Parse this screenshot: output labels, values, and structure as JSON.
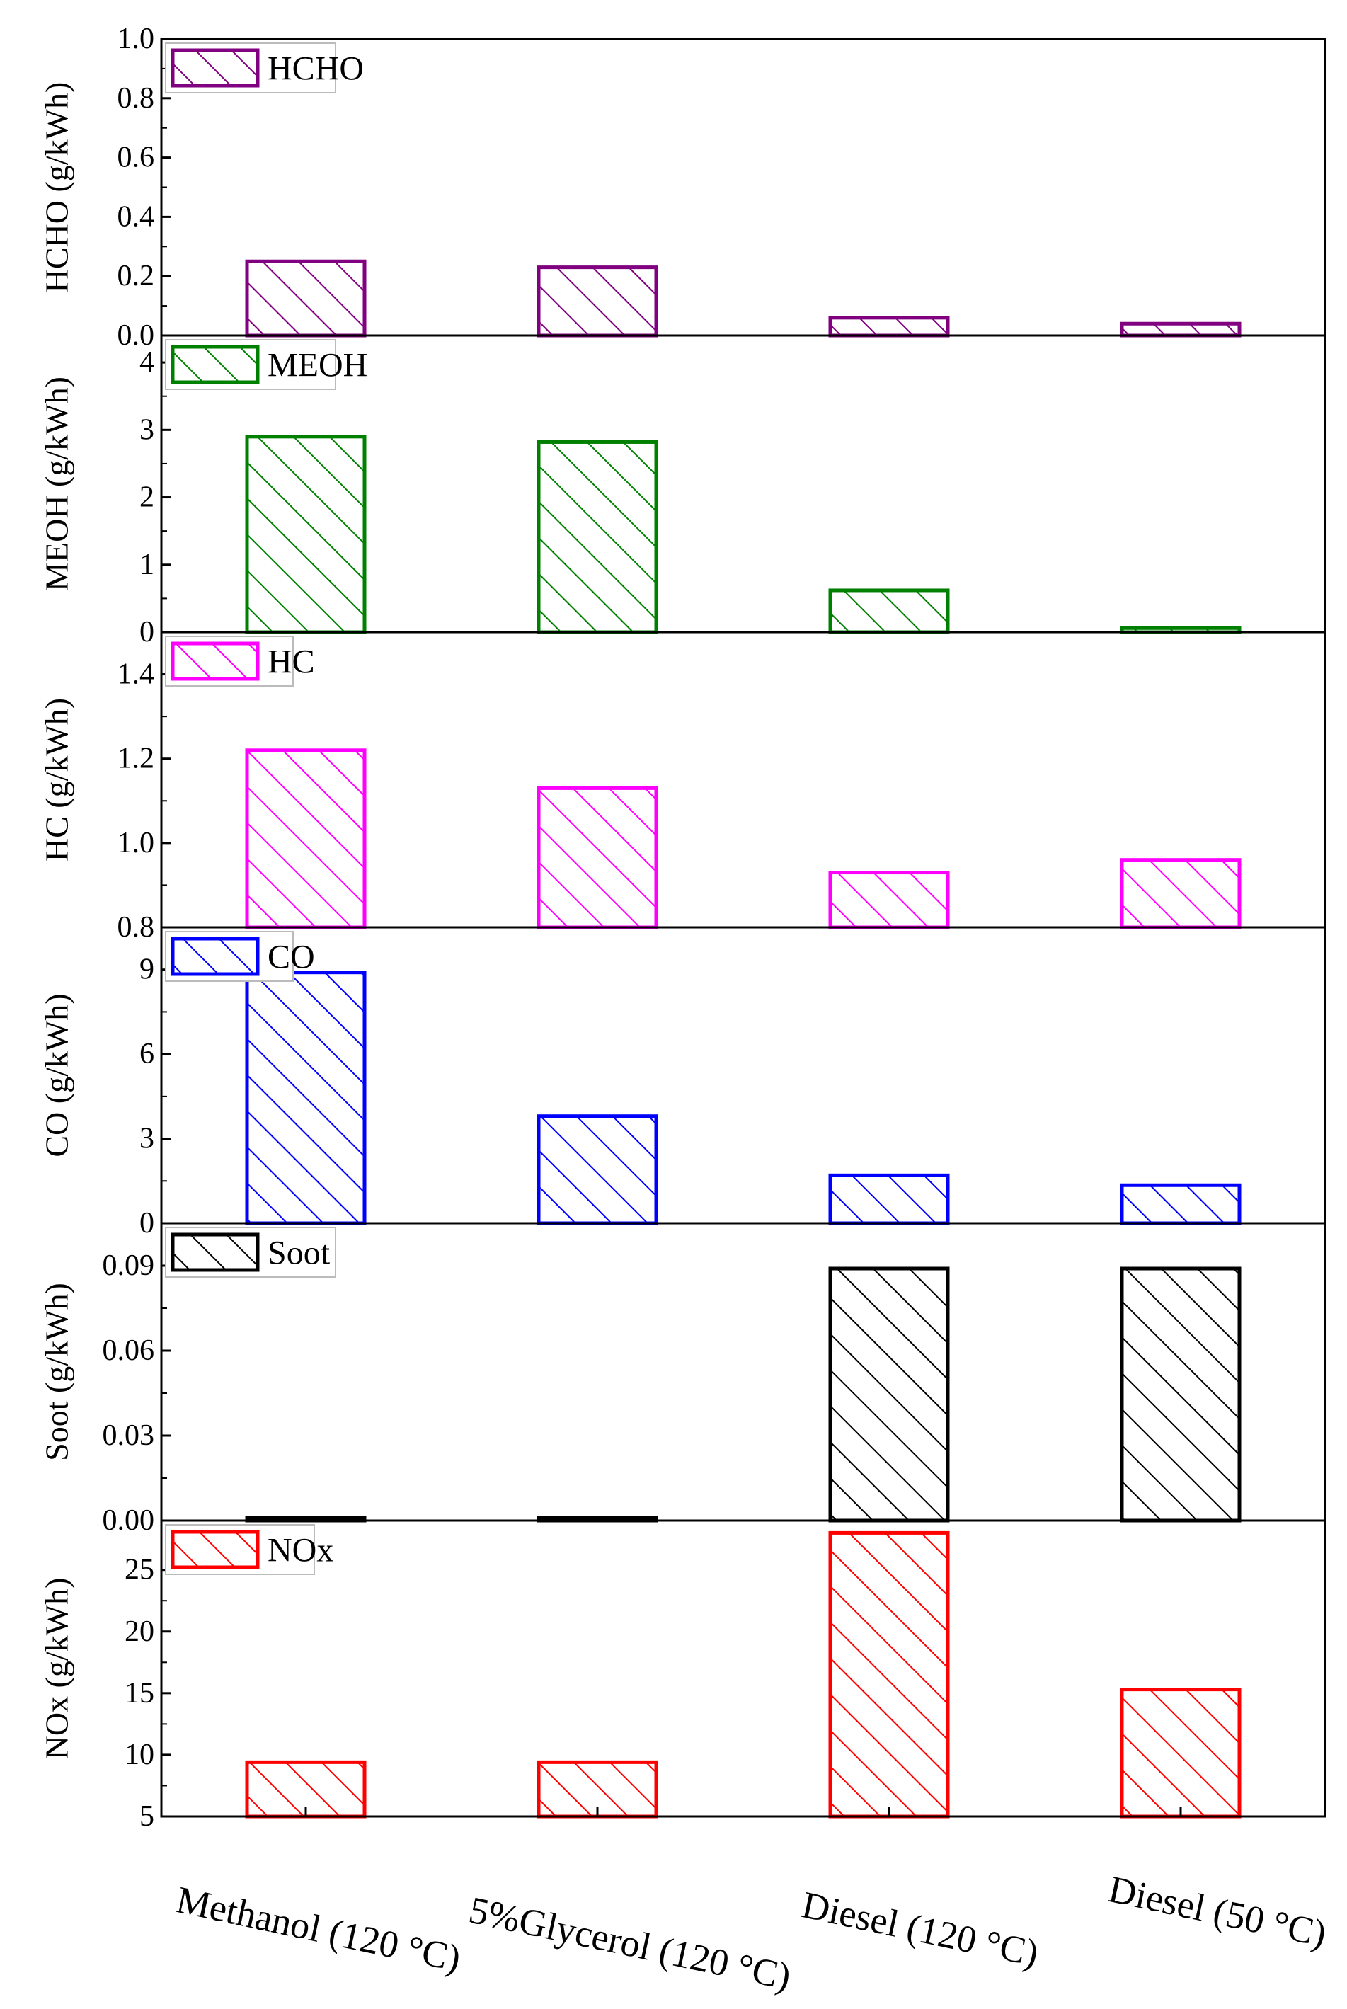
{
  "chart_data": {
    "type": "bar",
    "layout": "stacked-panels",
    "categories": [
      "Methanol (120 °C)",
      "5%Glycerol (120 °C)",
      "Diesel (120 °C)",
      "Diesel (50 °C)"
    ],
    "panels": [
      {
        "id": "hcho",
        "legend": "HCHO",
        "ylabel": "HCHO (g/kWh)",
        "color": "#800080",
        "ylim": [
          0,
          1.0
        ],
        "ticks": [
          0.0,
          0.2,
          0.4,
          0.6,
          0.8,
          1.0
        ],
        "tick_labels": [
          "0.0",
          "0.2",
          "0.4",
          "0.6",
          "0.8",
          "1.0"
        ],
        "values": [
          0.25,
          0.23,
          0.06,
          0.04
        ]
      },
      {
        "id": "meoh",
        "legend": "MEOH",
        "ylabel": "MEOH (g/kWh)",
        "color": "#008000",
        "ylim": [
          0,
          4.4
        ],
        "ticks": [
          0,
          1,
          2,
          3,
          4
        ],
        "tick_labels": [
          "0",
          "1",
          "2",
          "3",
          "4"
        ],
        "values": [
          2.9,
          2.82,
          0.62,
          0.06
        ]
      },
      {
        "id": "hc",
        "legend": "HC",
        "ylabel": "HC (g/kWh)",
        "color": "#ff00ff",
        "ylim": [
          0.8,
          1.5
        ],
        "ticks": [
          0.8,
          1.0,
          1.2,
          1.4
        ],
        "tick_labels": [
          "0.8",
          "1.0",
          "1.2",
          "1.4"
        ],
        "values": [
          1.22,
          1.13,
          0.93,
          0.96
        ]
      },
      {
        "id": "co",
        "legend": "CO",
        "ylabel": "CO (g/kWh)",
        "color": "#0000ff",
        "ylim": [
          0,
          10.5
        ],
        "ticks": [
          0,
          3,
          6,
          9
        ],
        "tick_labels": [
          "0",
          "3",
          "6",
          "9"
        ],
        "values": [
          8.9,
          3.8,
          1.7,
          1.35
        ]
      },
      {
        "id": "soot",
        "legend": "Soot",
        "ylabel": "Soot (g/kWh)",
        "color": "#000000",
        "ylim": [
          0,
          0.105
        ],
        "ticks": [
          0.0,
          0.03,
          0.06,
          0.09
        ],
        "tick_labels": [
          "0.00",
          "0.03",
          "0.06",
          "0.09"
        ],
        "values": [
          0.001,
          0.001,
          0.089,
          0.089
        ]
      },
      {
        "id": "nox",
        "legend": "NOx",
        "ylabel": "NOx (g/kWh)",
        "color": "#ff0000",
        "ylim": [
          5,
          29
        ],
        "ticks": [
          5,
          10,
          15,
          20,
          25
        ],
        "tick_labels": [
          "5",
          "10",
          "15",
          "20",
          "25"
        ],
        "values": [
          9.4,
          9.4,
          28.0,
          15.3
        ]
      }
    ]
  }
}
